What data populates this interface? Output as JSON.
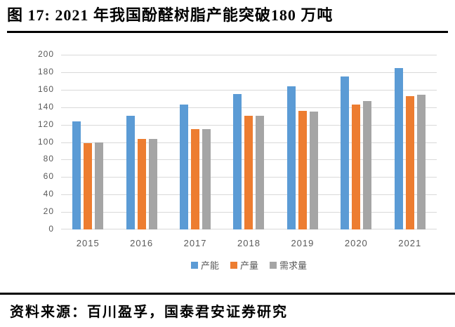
{
  "header": {
    "title": "图 17:  2021 年我国酚醛树脂产能突破180 万吨"
  },
  "chart_data": {
    "type": "bar",
    "title": "2021 年我国酚醛树脂产能突破180 万吨（万吨）",
    "categories": [
      "2015",
      "2016",
      "2017",
      "2018",
      "2019",
      "2020",
      "2021"
    ],
    "series": [
      {
        "name": "产能",
        "color": "#5B9BD5",
        "values": [
          124,
          130,
          143,
          155,
          164,
          175,
          185
        ]
      },
      {
        "name": "产量",
        "color": "#ED7D31",
        "values": [
          99,
          104,
          115,
          130,
          136,
          143,
          153
        ]
      },
      {
        "name": "需求量",
        "color": "#A5A5A5",
        "values": [
          100,
          104,
          115,
          130,
          135,
          147,
          154
        ]
      }
    ],
    "xlabel": "",
    "ylabel": "",
    "ylim": [
      0,
      200
    ],
    "ytick_step": 20,
    "grid": true,
    "gridline_color": "#d9d9d9",
    "axis_label_color": "#595959",
    "legend_position": "bottom"
  },
  "footer": {
    "source": "资料来源：百川盈孚，国泰君安证券研究"
  }
}
